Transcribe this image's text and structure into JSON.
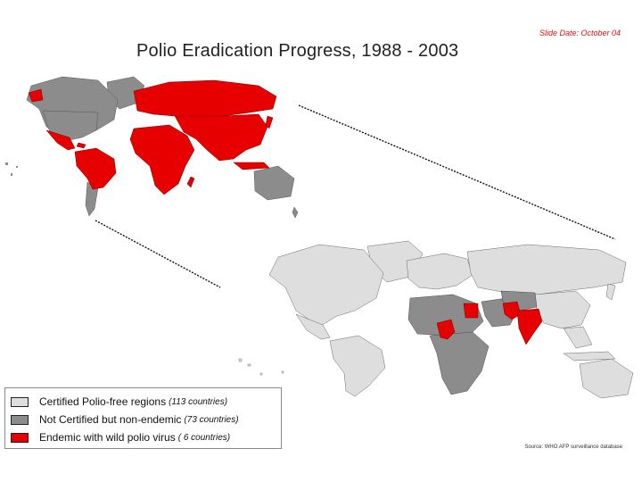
{
  "slide_date": "Slide Date: October 04",
  "title": "Polio Eradication Progress, 1988 - 2003",
  "maps": [
    {
      "year": "1988",
      "endemic_color": "#e60000",
      "nonendemic_color": "#8c8c8c"
    },
    {
      "year": "2003",
      "endemic_color": "#e60000",
      "nonendemic_color": "#8c8c8c",
      "certified_color": "#dedede"
    }
  ],
  "legend": {
    "items": [
      {
        "label": "Certified Polio-free regions",
        "count": "(113 countries)",
        "color": "#dedede"
      },
      {
        "label": "Not Certified but non-endemic",
        "count": "(73 countries)",
        "color": "#8c8c8c"
      },
      {
        "label": "Endemic with wild polio virus",
        "count": "( 6 countries)",
        "color": "#e60000"
      }
    ]
  },
  "source": "Source: WHO AFP surveillance database"
}
